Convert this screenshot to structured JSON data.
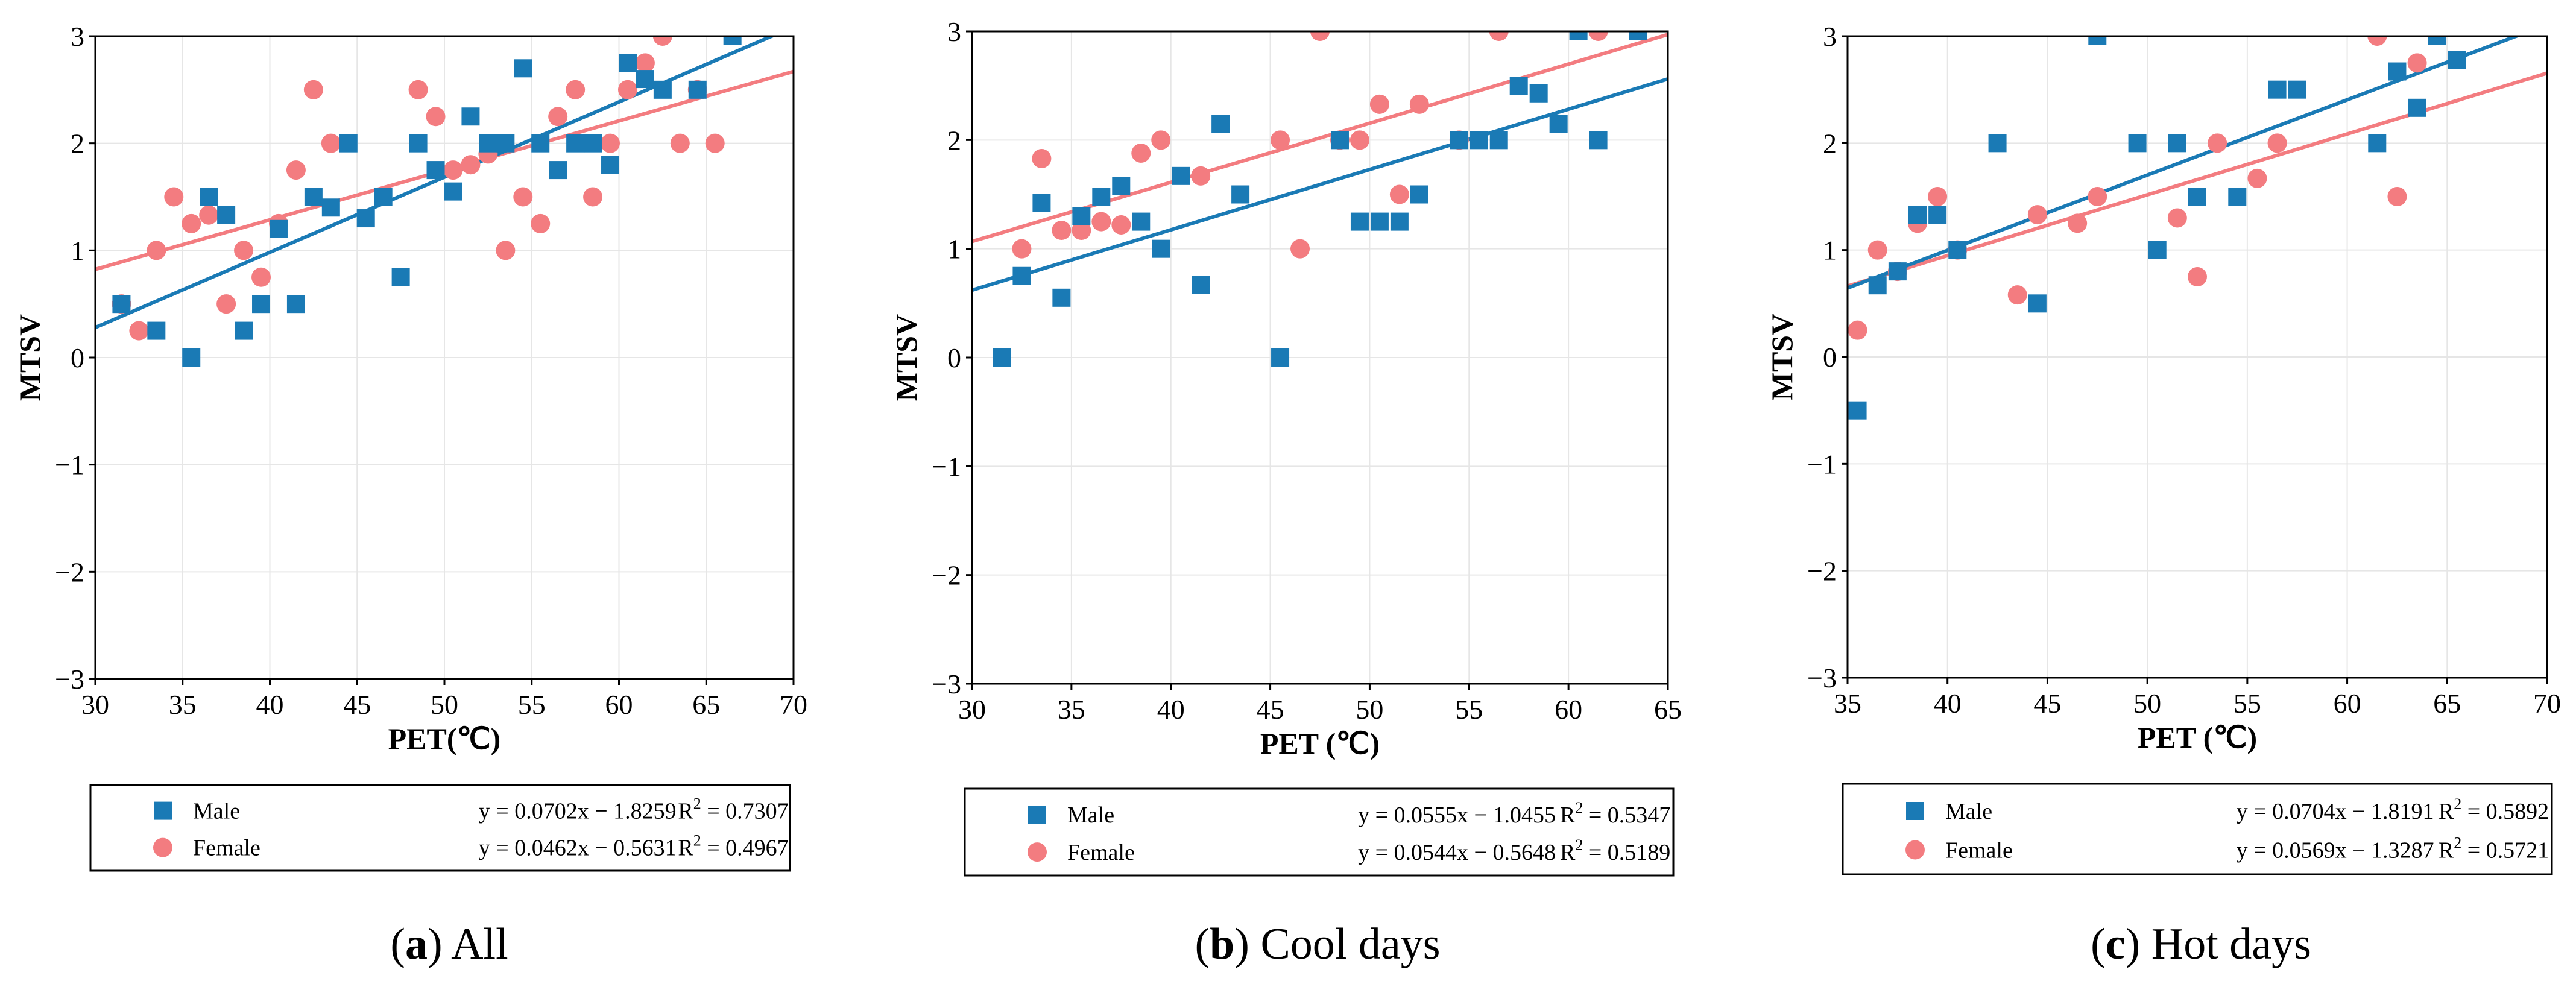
{
  "colors": {
    "male": "#1a7ab5",
    "female": "#f37c80",
    "grid": "#e6e6e6"
  },
  "chart_data": [
    {
      "type": "scatter",
      "panel": "a",
      "caption_letter": "a",
      "caption_text": ") All",
      "caption_open": "(",
      "xlabel": "PET(℃)",
      "ylabel": "MTSV",
      "xlim": [
        30,
        70
      ],
      "ylim": [
        -3,
        3
      ],
      "xticks": [
        "30",
        "35",
        "40",
        "45",
        "50",
        "55",
        "60",
        "65",
        "70"
      ],
      "yticks": [
        "−3",
        "−2",
        "−1",
        "0",
        "1",
        "2",
        "3"
      ],
      "grid": true,
      "series": [
        {
          "name": "Male",
          "marker": "square",
          "equation": "y = 0.0702x − 1.8259",
          "r2_label": "R",
          "r2_value": " = 0.7307",
          "fit": {
            "slope": 0.0702,
            "intercept": -1.8259
          },
          "points": [
            [
              31.5,
              0.5
            ],
            [
              33.5,
              0.25
            ],
            [
              35.5,
              0
            ],
            [
              36.5,
              1.5
            ],
            [
              37.5,
              1.33
            ],
            [
              38.5,
              0.25
            ],
            [
              39.5,
              0.5
            ],
            [
              40.5,
              1.2
            ],
            [
              41.5,
              0.5
            ],
            [
              42.5,
              1.5
            ],
            [
              43.5,
              1.4
            ],
            [
              44.5,
              2
            ],
            [
              45.5,
              1.3
            ],
            [
              46.5,
              1.5
            ],
            [
              47.5,
              0.75
            ],
            [
              48.5,
              2
            ],
            [
              49.5,
              1.75
            ],
            [
              50.5,
              1.55
            ],
            [
              51.5,
              2.25
            ],
            [
              52.5,
              2
            ],
            [
              53.5,
              2
            ],
            [
              54.5,
              2.7
            ],
            [
              55.5,
              2
            ],
            [
              56.5,
              1.75
            ],
            [
              57.5,
              2
            ],
            [
              58.5,
              2
            ],
            [
              59.5,
              1.8
            ],
            [
              60.5,
              2.75
            ],
            [
              61.5,
              2.6
            ],
            [
              62.5,
              2.5
            ],
            [
              64.5,
              2.5
            ],
            [
              66.5,
              3
            ]
          ]
        },
        {
          "name": "Female",
          "marker": "circle",
          "equation": "y = 0.0462x − 0.5631",
          "r2_label": "R",
          "r2_value": " = 0.4967",
          "fit": {
            "slope": 0.0462,
            "intercept": -0.5631
          },
          "points": [
            [
              31.5,
              0.5
            ],
            [
              32.5,
              0.25
            ],
            [
              33.5,
              1
            ],
            [
              34.5,
              1.5
            ],
            [
              35.5,
              1.25
            ],
            [
              36.5,
              1.33
            ],
            [
              37.5,
              0.5
            ],
            [
              38.5,
              1
            ],
            [
              39.5,
              0.75
            ],
            [
              40.5,
              1.25
            ],
            [
              41.5,
              1.75
            ],
            [
              42.5,
              2.5
            ],
            [
              43.5,
              2
            ],
            [
              48.5,
              2.5
            ],
            [
              49.5,
              2.25
            ],
            [
              50.5,
              1.75
            ],
            [
              51.5,
              1.8
            ],
            [
              52.5,
              1.9
            ],
            [
              53.5,
              1
            ],
            [
              54.5,
              1.5
            ],
            [
              55.5,
              1.25
            ],
            [
              56.5,
              2.25
            ],
            [
              57.5,
              2.5
            ],
            [
              58.5,
              1.5
            ],
            [
              59.5,
              2
            ],
            [
              60.5,
              2.5
            ],
            [
              61.5,
              2.75
            ],
            [
              62.5,
              3
            ],
            [
              63.5,
              2
            ],
            [
              64.5,
              2.5
            ],
            [
              65.5,
              2
            ]
          ]
        }
      ]
    },
    {
      "type": "scatter",
      "panel": "b",
      "caption_letter": "b",
      "caption_text": ") Cool days",
      "caption_open": "(",
      "xlabel": "PET (℃)",
      "ylabel": "MTSV",
      "xlim": [
        30,
        65
      ],
      "ylim": [
        -3,
        3
      ],
      "xticks": [
        "30",
        "35",
        "40",
        "45",
        "50",
        "55",
        "60",
        "65"
      ],
      "yticks": [
        "−3",
        "−2",
        "−1",
        "0",
        "1",
        "2",
        "3"
      ],
      "grid": true,
      "series": [
        {
          "name": "Male",
          "marker": "square",
          "equation": "y = 0.0555x − 1.0455",
          "r2_label": "R",
          "r2_value": " = 0.5347",
          "fit": {
            "slope": 0.0555,
            "intercept": -1.0455
          },
          "points": [
            [
              31.5,
              0
            ],
            [
              32.5,
              0.75
            ],
            [
              33.5,
              1.42
            ],
            [
              34.5,
              0.55
            ],
            [
              35.5,
              1.3
            ],
            [
              36.5,
              1.48
            ],
            [
              37.5,
              1.58
            ],
            [
              38.5,
              1.25
            ],
            [
              39.5,
              1
            ],
            [
              40.5,
              1.67
            ],
            [
              41.5,
              0.67
            ],
            [
              42.5,
              2.15
            ],
            [
              43.5,
              1.5
            ],
            [
              45.5,
              0
            ],
            [
              48.5,
              2
            ],
            [
              49.5,
              1.25
            ],
            [
              50.5,
              1.25
            ],
            [
              51.5,
              1.25
            ],
            [
              52.5,
              1.5
            ],
            [
              54.5,
              2
            ],
            [
              55.5,
              2
            ],
            [
              56.5,
              2
            ],
            [
              57.5,
              2.5
            ],
            [
              58.5,
              2.43
            ],
            [
              59.5,
              2.15
            ],
            [
              60.5,
              3
            ],
            [
              61.5,
              2
            ],
            [
              63.5,
              3
            ]
          ]
        },
        {
          "name": "Female",
          "marker": "circle",
          "equation": "y = 0.0544x − 0.5648",
          "r2_label": "R",
          "r2_value": " = 0.5189",
          "fit": {
            "slope": 0.0544,
            "intercept": -0.5648
          },
          "points": [
            [
              32.5,
              1
            ],
            [
              33.5,
              1.83
            ],
            [
              34.5,
              1.17
            ],
            [
              35.5,
              1.17
            ],
            [
              36.5,
              1.25
            ],
            [
              37.5,
              1.22
            ],
            [
              38.5,
              1.88
            ],
            [
              39.5,
              2
            ],
            [
              41.5,
              1.67
            ],
            [
              45.5,
              2
            ],
            [
              46.5,
              1
            ],
            [
              47.5,
              3
            ],
            [
              48.5,
              2
            ],
            [
              49.5,
              2
            ],
            [
              50.5,
              2.33
            ],
            [
              51.5,
              1.5
            ],
            [
              52.5,
              2.33
            ],
            [
              54.5,
              2
            ],
            [
              56.5,
              3
            ],
            [
              61.5,
              3
            ]
          ]
        }
      ]
    },
    {
      "type": "scatter",
      "panel": "c",
      "caption_letter": "c",
      "caption_text": ") Hot days",
      "caption_open": "(",
      "xlabel": "PET (℃)",
      "ylabel": "MTSV",
      "xlim": [
        35,
        70
      ],
      "ylim": [
        -3,
        3
      ],
      "xticks": [
        "35",
        "40",
        "45",
        "50",
        "55",
        "60",
        "65",
        "70"
      ],
      "yticks": [
        "−3",
        "−2",
        "−1",
        "0",
        "1",
        "2",
        "3"
      ],
      "grid": true,
      "series": [
        {
          "name": "Male",
          "marker": "square",
          "equation": "y = 0.0704x − 1.8191",
          "r2_label": "R",
          "r2_value": " = 0.5892",
          "fit": {
            "slope": 0.0704,
            "intercept": -1.8191
          },
          "points": [
            [
              35.5,
              -0.5
            ],
            [
              36.5,
              0.67
            ],
            [
              37.5,
              0.8
            ],
            [
              38.5,
              1.33
            ],
            [
              39.5,
              1.33
            ],
            [
              40.5,
              1
            ],
            [
              42.5,
              2
            ],
            [
              44.5,
              0.5
            ],
            [
              47.5,
              3
            ],
            [
              49.5,
              2
            ],
            [
              50.5,
              1
            ],
            [
              51.5,
              2
            ],
            [
              52.5,
              1.5
            ],
            [
              54.5,
              1.5
            ],
            [
              56.5,
              2.5
            ],
            [
              57.5,
              2.5
            ],
            [
              61.5,
              2
            ],
            [
              62.5,
              2.67
            ],
            [
              63.5,
              2.33
            ],
            [
              64.5,
              3
            ],
            [
              65.5,
              2.78
            ]
          ]
        },
        {
          "name": "Female",
          "marker": "circle",
          "equation": "y = 0.0569x − 1.3287",
          "r2_label": "R",
          "r2_value": " = 0.5721",
          "fit": {
            "slope": 0.0569,
            "intercept": -1.3287
          },
          "points": [
            [
              35.5,
              0.25
            ],
            [
              36.5,
              1
            ],
            [
              37.5,
              0.8
            ],
            [
              38.5,
              1.25
            ],
            [
              39.5,
              1.5
            ],
            [
              40.5,
              1
            ],
            [
              43.5,
              0.58
            ],
            [
              44.5,
              1.33
            ],
            [
              46.5,
              1.25
            ],
            [
              47.5,
              1.5
            ],
            [
              51.5,
              1.3
            ],
            [
              52.5,
              0.75
            ],
            [
              53.5,
              2
            ],
            [
              55.5,
              1.67
            ],
            [
              56.5,
              2
            ],
            [
              61.5,
              3
            ],
            [
              62.5,
              1.5
            ],
            [
              63.5,
              2.75
            ]
          ]
        }
      ]
    }
  ]
}
